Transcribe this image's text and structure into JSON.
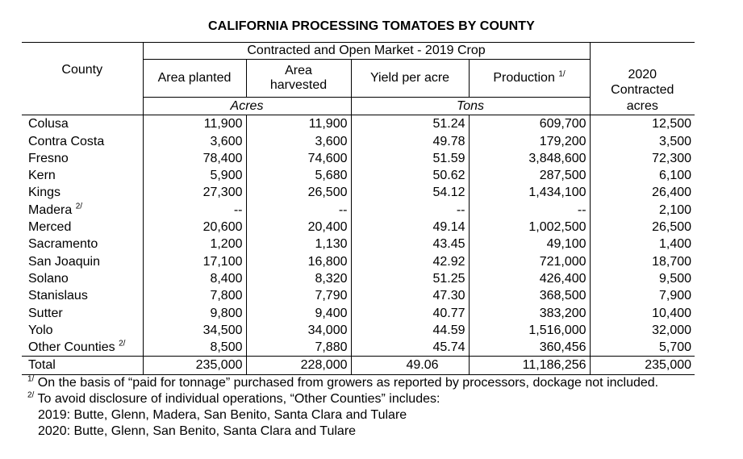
{
  "title": "CALIFORNIA PROCESSING TOMATOES BY COUNTY",
  "header": {
    "county": "County",
    "group": "Contracted and Open Market - 2019 Crop",
    "area_planted": "Area planted",
    "area_harvested_1": "Area",
    "area_harvested_2": "harvested",
    "yield": "Yield per acre",
    "production": "Production",
    "production_note": "1/",
    "contracted_1": "2020",
    "contracted_2": "Contracted",
    "contracted_3": "acres",
    "acres_unit": "Acres",
    "tons_unit": "Tons"
  },
  "rows": [
    {
      "county": "Colusa",
      "note": "",
      "planted": "11,900",
      "harvested": "11,900",
      "yield": "51.24",
      "production": "609,700",
      "contracted": "12,500"
    },
    {
      "county": "Contra Costa",
      "note": "",
      "planted": "3,600",
      "harvested": "3,600",
      "yield": "49.78",
      "production": "179,200",
      "contracted": "3,500"
    },
    {
      "county": "Fresno",
      "note": "",
      "planted": "78,400",
      "harvested": "74,600",
      "yield": "51.59",
      "production": "3,848,600",
      "contracted": "72,300"
    },
    {
      "county": "Kern",
      "note": "",
      "planted": "5,900",
      "harvested": "5,680",
      "yield": "50.62",
      "production": "287,500",
      "contracted": "6,100"
    },
    {
      "county": "Kings",
      "note": "",
      "planted": "27,300",
      "harvested": "26,500",
      "yield": "54.12",
      "production": "1,434,100",
      "contracted": "26,400"
    },
    {
      "county": "Madera",
      "note": "2/",
      "planted": "--",
      "harvested": "--",
      "yield": "--",
      "production": "--",
      "contracted": "2,100"
    },
    {
      "county": "Merced",
      "note": "",
      "planted": "20,600",
      "harvested": "20,400",
      "yield": "49.14",
      "production": "1,002,500",
      "contracted": "26,500"
    },
    {
      "county": "Sacramento",
      "note": "",
      "planted": "1,200",
      "harvested": "1,130",
      "yield": "43.45",
      "production": "49,100",
      "contracted": "1,400"
    },
    {
      "county": "San Joaquin",
      "note": "",
      "planted": "17,100",
      "harvested": "16,800",
      "yield": "42.92",
      "production": "721,000",
      "contracted": "18,700"
    },
    {
      "county": "Solano",
      "note": "",
      "planted": "8,400",
      "harvested": "8,320",
      "yield": "51.25",
      "production": "426,400",
      "contracted": "9,500"
    },
    {
      "county": "Stanislaus",
      "note": "",
      "planted": "7,800",
      "harvested": "7,790",
      "yield": "47.30",
      "production": "368,500",
      "contracted": "7,900"
    },
    {
      "county": "Sutter",
      "note": "",
      "planted": "9,800",
      "harvested": "9,400",
      "yield": "40.77",
      "production": "383,200",
      "contracted": "10,400"
    },
    {
      "county": "Yolo",
      "note": "",
      "planted": "34,500",
      "harvested": "34,000",
      "yield": "44.59",
      "production": "1,516,000",
      "contracted": "32,000"
    },
    {
      "county": "Other Counties",
      "note": "2/",
      "planted": "8,500",
      "harvested": "7,880",
      "yield": "45.74",
      "production": "360,456",
      "contracted": "5,700"
    }
  ],
  "total": {
    "county": "Total",
    "planted": "235,000",
    "harvested": "228,000",
    "yield": "49.06",
    "production": "11,186,256",
    "contracted": "235,000"
  },
  "footnotes": {
    "n1_mark": "1/",
    "n1_text": "On the basis of “paid for tonnage” purchased from growers as reported by processors, dockage not included.",
    "n2_mark": "2/",
    "n2_text": "To avoid disclosure of individual operations, “Other Counties” includes:",
    "n2_line1": "2019:  Butte, Glenn, Madera, San Benito, Santa Clara and Tulare",
    "n2_line2": "2020:  Butte, Glenn, San Benito, Santa Clara and Tulare"
  }
}
